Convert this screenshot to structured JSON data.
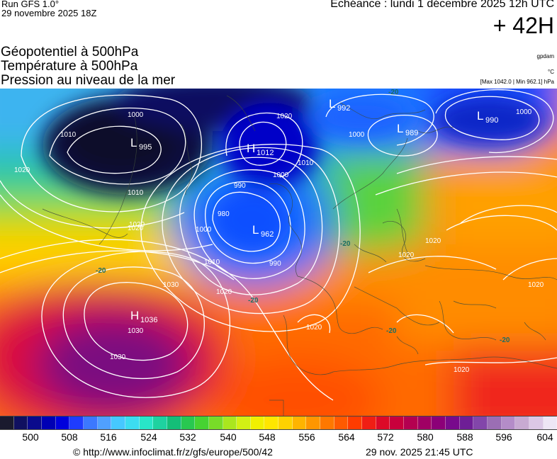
{
  "header": {
    "run_label": "Run GFS 1.0°",
    "run_date": "29 novembre 2025 18Z",
    "valid_time": "Echéance : lundi 1 décembre 2025 12h UTC",
    "lead_time": "+ 42H"
  },
  "titles": {
    "line1": "Géopotentiel à 500hPa",
    "line2": "Température à 500hPa",
    "line3": "Pression au niveau de la mer"
  },
  "units": {
    "geopotential": "gpdam",
    "temperature": "°C",
    "pressure_range": "[Max 1042.0 | Min 962.1] hPa"
  },
  "map": {
    "pressure_centers": [
      {
        "letter": "L",
        "value": "995"
      },
      {
        "letter": "H",
        "value": "1012"
      },
      {
        "letter": "L",
        "value": "962"
      },
      {
        "letter": "L",
        "value": "992"
      },
      {
        "letter": "L",
        "value": "989"
      },
      {
        "letter": "L",
        "value": "990"
      },
      {
        "letter": "H",
        "value": "1036"
      }
    ],
    "isobar_labels": [
      "1000",
      "1010",
      "1020",
      "1030",
      "990",
      "980"
    ],
    "temperature_labels": [
      "-20"
    ]
  },
  "colorbar": {
    "colors": [
      "#1a1a2e",
      "#101060",
      "#0a0a8c",
      "#0000b4",
      "#0000dc",
      "#1e3cff",
      "#3c78ff",
      "#50a0ff",
      "#46c8ff",
      "#3cdcf0",
      "#28e6c8",
      "#1ed2a0",
      "#14be78",
      "#28c850",
      "#46d232",
      "#78dc28",
      "#aae61e",
      "#d2f014",
      "#f0f000",
      "#ffe600",
      "#ffd200",
      "#ffb400",
      "#ff9600",
      "#ff7800",
      "#ff5a00",
      "#ff3c00",
      "#f01e14",
      "#dc0a28",
      "#c8003c",
      "#b40050",
      "#a00064",
      "#8c0078",
      "#780a8c",
      "#6e1e96",
      "#8246aa",
      "#9b6eb4",
      "#b48cc8",
      "#c8aad2",
      "#dcc8e6",
      "#eee6f5"
    ],
    "tick_values": [
      "500",
      "508",
      "516",
      "524",
      "532",
      "540",
      "548",
      "556",
      "564",
      "572",
      "580",
      "588",
      "596",
      "604"
    ]
  },
  "footer": {
    "url": "© http://www.infoclimat.fr/z/gfs/europe/500/42",
    "generated": "29 nov. 2025 21:45 UTC"
  }
}
